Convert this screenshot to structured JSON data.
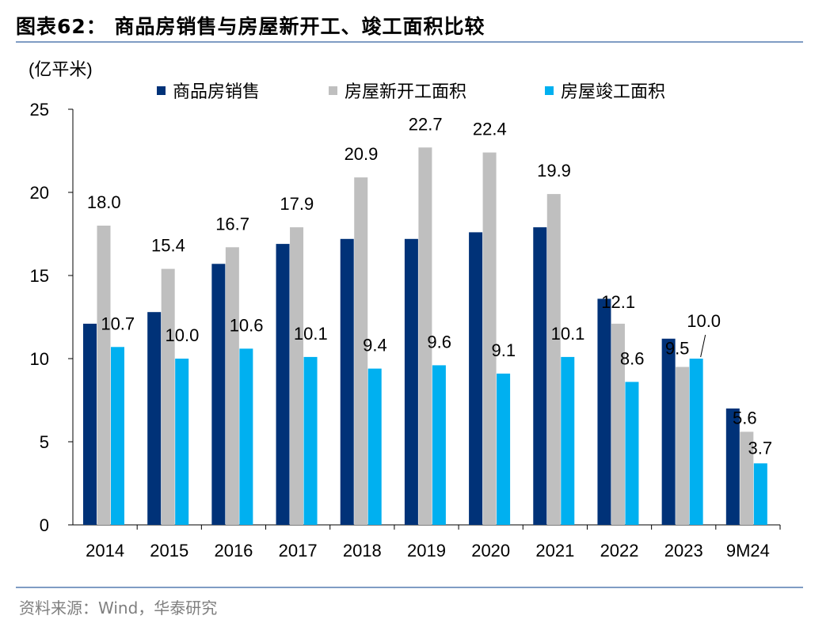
{
  "header": {
    "title": "图表62：  商品房销售与房屋新开工、竣工面积比较"
  },
  "footer": {
    "source": "资料来源：Wind，华泰研究"
  },
  "chart_data": {
    "type": "bar",
    "title": "",
    "ylabel": "(亿平米)",
    "xlabel": "",
    "ylim": [
      0,
      25
    ],
    "yticks": [
      0,
      5,
      10,
      15,
      20,
      25
    ],
    "grid": false,
    "legend": "top",
    "categories": [
      "2014",
      "2015",
      "2016",
      "2017",
      "2018",
      "2019",
      "2020",
      "2021",
      "2022",
      "2023",
      "9M24"
    ],
    "series": [
      {
        "name": "商品房销售",
        "color": "#003278",
        "values": [
          12.1,
          12.8,
          15.7,
          16.9,
          17.2,
          17.2,
          17.6,
          17.9,
          13.6,
          11.2,
          7.0
        ],
        "labels": false
      },
      {
        "name": "房屋新开工面积",
        "color": "#bfbfbf",
        "values": [
          18.0,
          15.4,
          16.7,
          17.9,
          20.9,
          22.7,
          22.4,
          19.9,
          12.1,
          9.5,
          5.6
        ],
        "labels": true
      },
      {
        "name": "房屋竣工面积",
        "color": "#00b0f0",
        "values": [
          10.7,
          10.0,
          10.6,
          10.1,
          9.4,
          9.6,
          9.1,
          10.1,
          8.6,
          10.0,
          3.7
        ],
        "labels": true
      }
    ]
  }
}
